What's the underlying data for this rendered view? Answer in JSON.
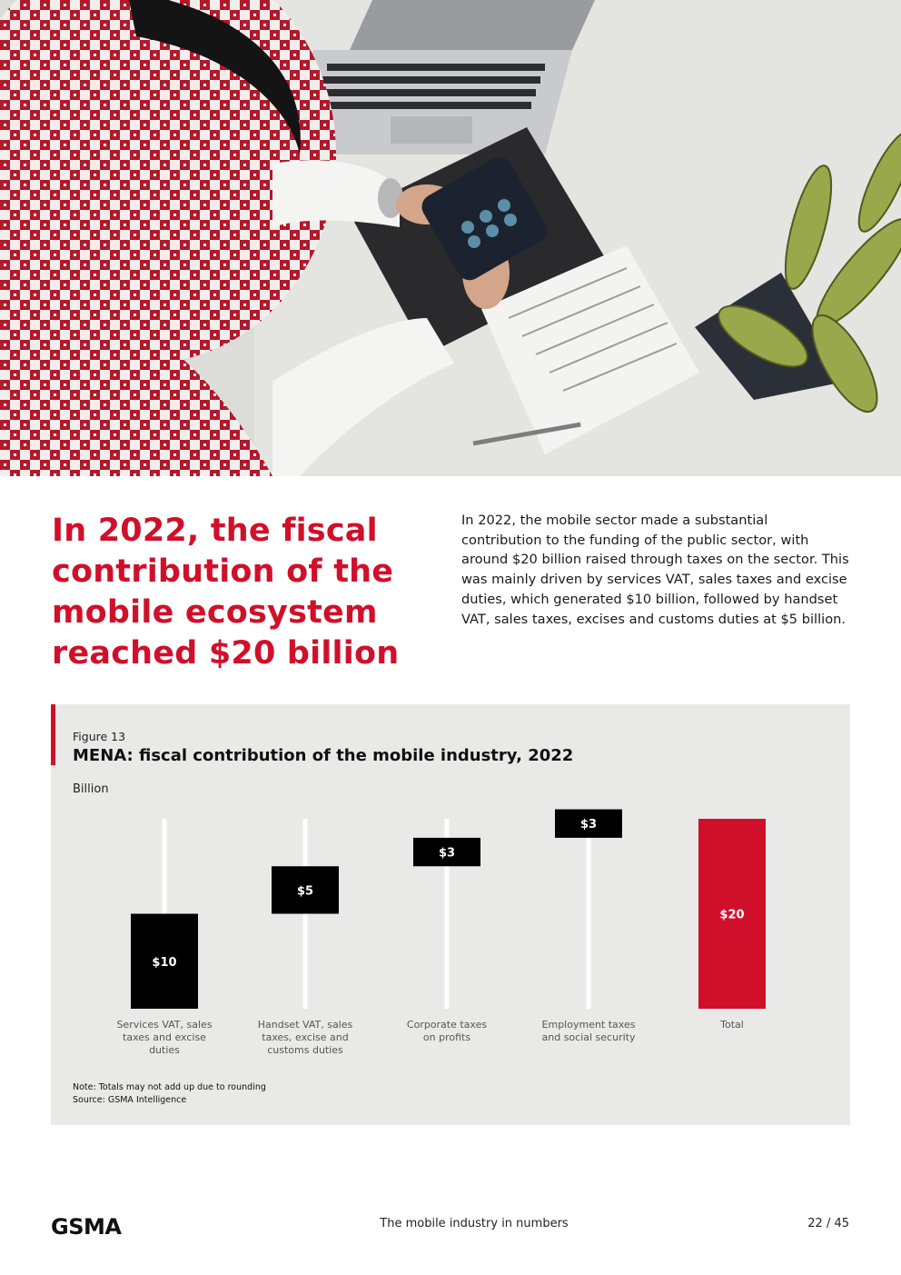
{
  "hero": {
    "image_description_icon": "office-desk-phone-photo"
  },
  "headline": "In 2022, the fiscal contribution of the mobile ecosystem reached $20 billion",
  "intro": "In 2022, the mobile sector made a substantial contribution to the funding of the public sector, with around $20 billion raised through taxes on the sector. This was mainly driven by services VAT, sales taxes and excise duties, which generated $10 billion, followed by handset VAT, sales taxes, excises and customs duties at $5 billion.",
  "figure": {
    "label": "Figure 13",
    "title": "MENA: fiscal contribution of the mobile industry, 2022",
    "unit": "Billion",
    "note": "Note: Totals may not add up due to rounding",
    "source": "Source: GSMA Intelligence"
  },
  "chart_data": {
    "type": "bar",
    "subtype": "waterfall",
    "title": "MENA: fiscal contribution of the mobile industry, 2022",
    "ylabel": "Billion",
    "ylim": [
      0,
      20
    ],
    "categories": [
      [
        "Services VAT, sales",
        "taxes and excise",
        "duties"
      ],
      [
        "Handset VAT, sales",
        "taxes, excise and",
        "customs duties"
      ],
      [
        "Corporate taxes",
        "on profits"
      ],
      [
        "Employment taxes",
        "and social security"
      ],
      [
        "Total"
      ]
    ],
    "values": [
      10,
      5,
      3,
      3,
      20
    ],
    "data_labels": [
      "$10",
      "$5",
      "$3",
      "$3",
      "$20"
    ],
    "colors": {
      "step": "#000000",
      "total": "#d0102a",
      "connector": "#ffffff",
      "label": "#ffffff",
      "category": "#555555"
    }
  },
  "footer": {
    "logo_text": "GSMA",
    "title": "The mobile industry in numbers",
    "page": "22 / 45"
  },
  "colors": {
    "accent": "#d0102a",
    "panel": "#e9e9e8"
  }
}
